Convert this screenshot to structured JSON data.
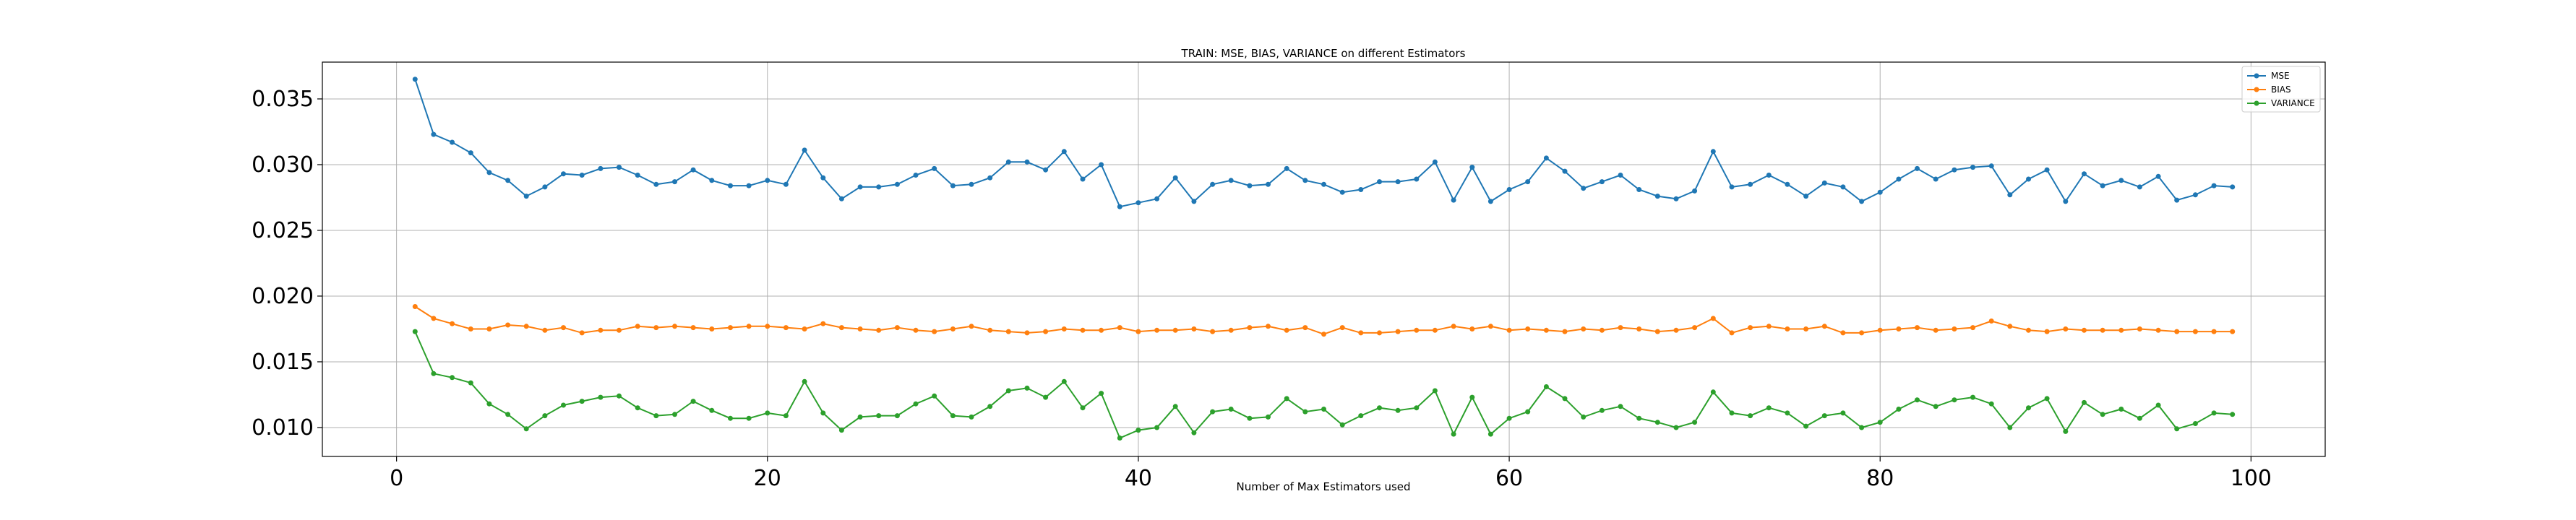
{
  "chart_data": {
    "type": "line",
    "title": "TRAIN: MSE, BIAS, VARIANCE on different Estimators",
    "xlabel": "Number of Max Estimators used",
    "ylabel": "",
    "xlim": [
      -4,
      104
    ],
    "ylim": [
      0.0078,
      0.0378
    ],
    "xticks": [
      0,
      20,
      40,
      60,
      80,
      100
    ],
    "xtick_labels": [
      "0",
      "20",
      "40",
      "60",
      "80",
      "100"
    ],
    "yticks": [
      0.01,
      0.015,
      0.02,
      0.025,
      0.03,
      0.035
    ],
    "ytick_labels": [
      "0.010",
      "0.015",
      "0.020",
      "0.025",
      "0.030",
      "0.035"
    ],
    "grid": true,
    "legend_position": "top-right",
    "x": [
      1,
      2,
      3,
      4,
      5,
      6,
      7,
      8,
      9,
      10,
      11,
      12,
      13,
      14,
      15,
      16,
      17,
      18,
      19,
      20,
      21,
      22,
      23,
      24,
      25,
      26,
      27,
      28,
      29,
      30,
      31,
      32,
      33,
      34,
      35,
      36,
      37,
      38,
      39,
      40,
      41,
      42,
      43,
      44,
      45,
      46,
      47,
      48,
      49,
      50,
      51,
      52,
      53,
      54,
      55,
      56,
      57,
      58,
      59,
      60,
      61,
      62,
      63,
      64,
      65,
      66,
      67,
      68,
      69,
      70,
      71,
      72,
      73,
      74,
      75,
      76,
      77,
      78,
      79,
      80,
      81,
      82,
      83,
      84,
      85,
      86,
      87,
      88,
      89,
      90,
      91,
      92,
      93,
      94,
      95,
      96,
      97,
      98,
      99
    ],
    "series": [
      {
        "name": "MSE",
        "color": "#1f77b4",
        "marker": "circle",
        "values": [
          0.0365,
          0.0323,
          0.0317,
          0.0309,
          0.0294,
          0.0288,
          0.0276,
          0.0283,
          0.0293,
          0.0292,
          0.0297,
          0.0298,
          0.0292,
          0.0285,
          0.0287,
          0.0296,
          0.0288,
          0.0284,
          0.0284,
          0.0288,
          0.0285,
          0.0311,
          0.029,
          0.0274,
          0.0283,
          0.0283,
          0.0285,
          0.0292,
          0.0297,
          0.0284,
          0.0285,
          0.029,
          0.0302,
          0.0302,
          0.0296,
          0.031,
          0.0289,
          0.03,
          0.0268,
          0.0271,
          0.0274,
          0.029,
          0.0272,
          0.0285,
          0.0288,
          0.0284,
          0.0285,
          0.0297,
          0.0288,
          0.0285,
          0.0279,
          0.0281,
          0.0287,
          0.0287,
          0.0289,
          0.0302,
          0.0273,
          0.0298,
          0.0272,
          0.0281,
          0.0287,
          0.0305,
          0.0295,
          0.0282,
          0.0287,
          0.0292,
          0.0281,
          0.0276,
          0.0274,
          0.028,
          0.031,
          0.0283,
          0.0285,
          0.0292,
          0.0285,
          0.0276,
          0.0286,
          0.0283,
          0.0272,
          0.0279,
          0.0289,
          0.0297,
          0.0289,
          0.0296,
          0.0298,
          0.0299,
          0.0277,
          0.0289,
          0.0296,
          0.0272,
          0.0293,
          0.0284,
          0.0288,
          0.0283,
          0.0291,
          0.0273,
          0.0277,
          0.0284,
          0.0283
        ]
      },
      {
        "name": "BIAS",
        "color": "#ff7f0e",
        "marker": "circle",
        "values": [
          0.0192,
          0.0183,
          0.0179,
          0.0175,
          0.0175,
          0.0178,
          0.0177,
          0.0174,
          0.0176,
          0.0172,
          0.0174,
          0.0174,
          0.0177,
          0.0176,
          0.0177,
          0.0176,
          0.0175,
          0.0176,
          0.0177,
          0.0177,
          0.0176,
          0.0175,
          0.0179,
          0.0176,
          0.0175,
          0.0174,
          0.0176,
          0.0174,
          0.0173,
          0.0175,
          0.0177,
          0.0174,
          0.0173,
          0.0172,
          0.0173,
          0.0175,
          0.0174,
          0.0174,
          0.0176,
          0.0173,
          0.0174,
          0.0174,
          0.0175,
          0.0173,
          0.0174,
          0.0176,
          0.0177,
          0.0174,
          0.0176,
          0.0171,
          0.0176,
          0.0172,
          0.0172,
          0.0173,
          0.0174,
          0.0174,
          0.0177,
          0.0175,
          0.0177,
          0.0174,
          0.0175,
          0.0174,
          0.0173,
          0.0175,
          0.0174,
          0.0176,
          0.0175,
          0.0173,
          0.0174,
          0.0176,
          0.0183,
          0.0172,
          0.0176,
          0.0177,
          0.0175,
          0.0175,
          0.0177,
          0.0172,
          0.0172,
          0.0174,
          0.0175,
          0.0176,
          0.0174,
          0.0175,
          0.0176,
          0.0181,
          0.0177,
          0.0174,
          0.0173,
          0.0175,
          0.0174,
          0.0174,
          0.0174,
          0.0175,
          0.0174,
          0.0173,
          0.0173,
          0.0173,
          0.0173
        ]
      },
      {
        "name": "VARIANCE",
        "color": "#2ca02c",
        "marker": "circle",
        "values": [
          0.0173,
          0.0141,
          0.0138,
          0.0134,
          0.0118,
          0.011,
          0.0099,
          0.0109,
          0.0117,
          0.012,
          0.0123,
          0.0124,
          0.0115,
          0.0109,
          0.011,
          0.012,
          0.0113,
          0.0107,
          0.0107,
          0.0111,
          0.0109,
          0.0135,
          0.0111,
          0.0098,
          0.0108,
          0.0109,
          0.0109,
          0.0118,
          0.0124,
          0.0109,
          0.0108,
          0.0116,
          0.0128,
          0.013,
          0.0123,
          0.0135,
          0.0115,
          0.0126,
          0.0092,
          0.0098,
          0.01,
          0.0116,
          0.0096,
          0.0112,
          0.0114,
          0.0107,
          0.0108,
          0.0122,
          0.0112,
          0.0114,
          0.0102,
          0.0109,
          0.0115,
          0.0113,
          0.0115,
          0.0128,
          0.0095,
          0.0123,
          0.0095,
          0.0107,
          0.0112,
          0.0131,
          0.0122,
          0.0108,
          0.0113,
          0.0116,
          0.0107,
          0.0104,
          0.01,
          0.0104,
          0.0127,
          0.0111,
          0.0109,
          0.0115,
          0.0111,
          0.0101,
          0.0109,
          0.0111,
          0.01,
          0.0104,
          0.0114,
          0.0121,
          0.0116,
          0.0121,
          0.0123,
          0.0118,
          0.01,
          0.0115,
          0.0122,
          0.0097,
          0.0119,
          0.011,
          0.0114,
          0.0107,
          0.0117,
          0.0099,
          0.0103,
          0.0111,
          0.011
        ]
      }
    ]
  }
}
